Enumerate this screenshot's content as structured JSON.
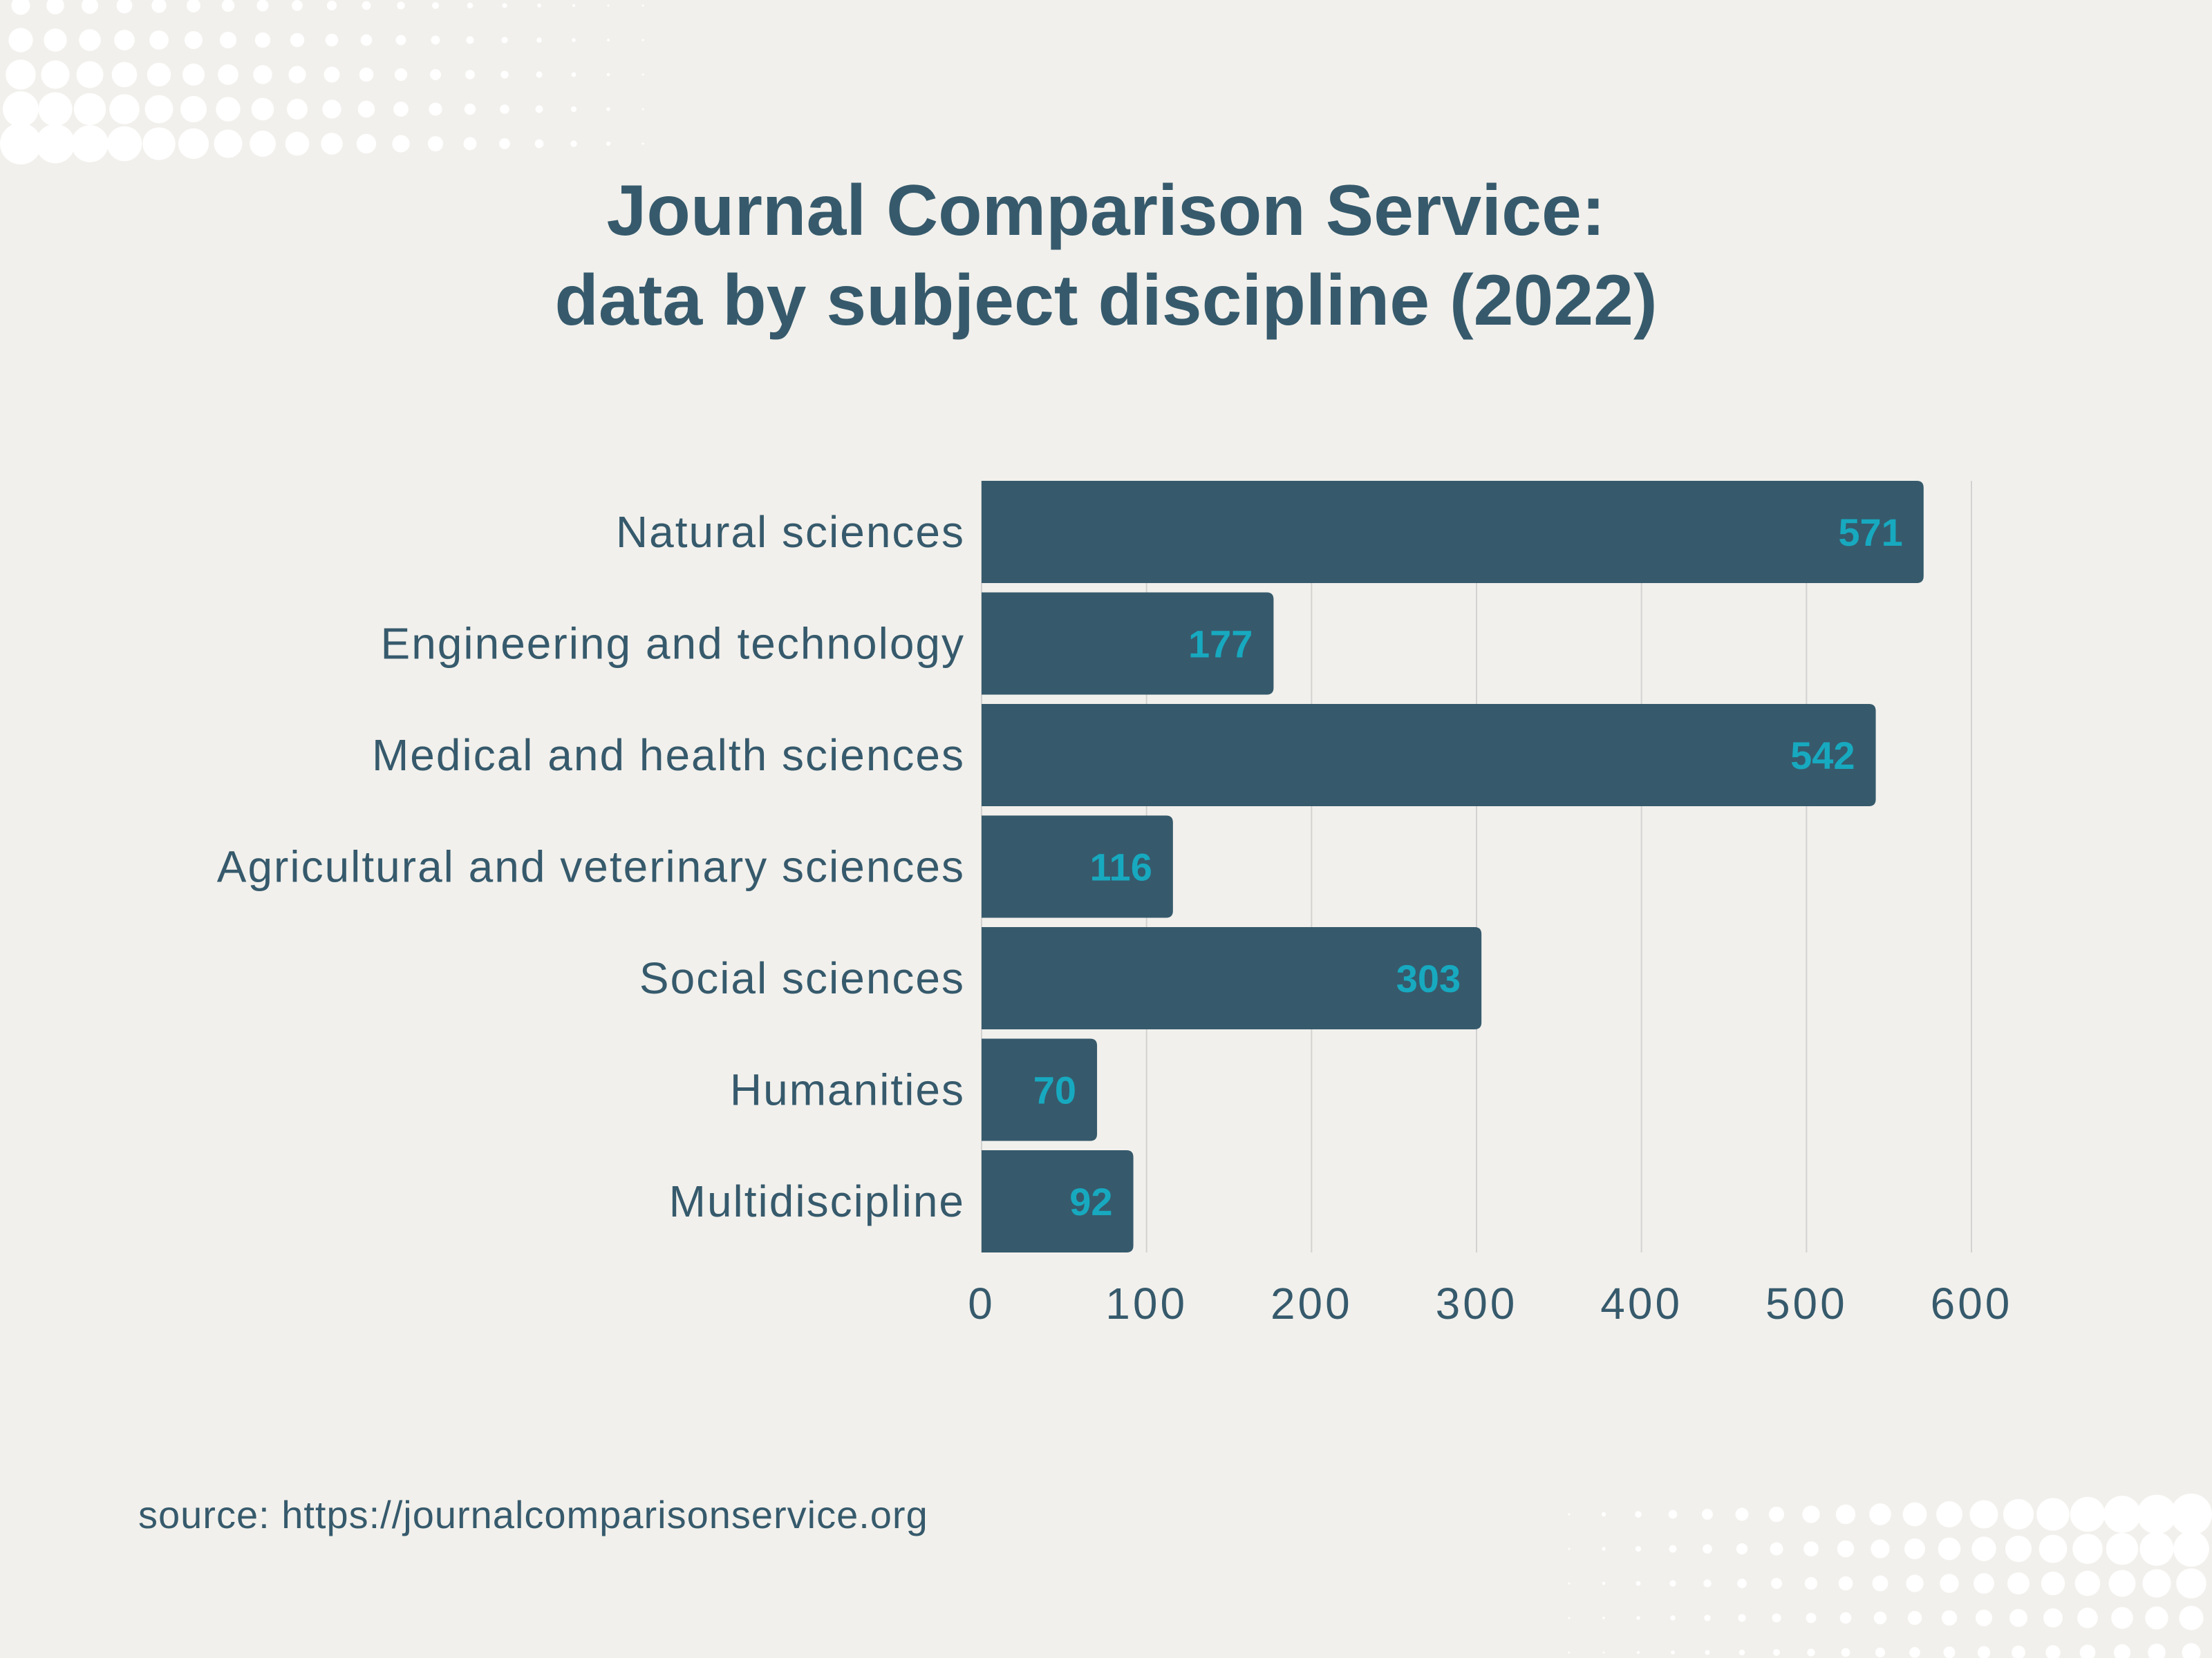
{
  "title_line1": "Journal Comparison Service:",
  "title_line2": "data by subject discipline (2022)",
  "source": "source: https://journalcomparisonservice.org",
  "colors": {
    "background": "#f2f0ec",
    "bar": "#365a6c",
    "value_label": "#17a9bf",
    "text": "#365a6c",
    "grid": "#d2d2d2",
    "dots": "#ffffff"
  },
  "chart_data": {
    "type": "bar",
    "orientation": "horizontal",
    "categories": [
      "Natural sciences",
      "Engineering and technology",
      "Medical and health sciences",
      "Agricultural and veterinary sciences",
      "Social sciences",
      "Humanities",
      "Multidiscipline"
    ],
    "values": [
      571,
      177,
      542,
      116,
      303,
      70,
      92
    ],
    "xlim": [
      0,
      600
    ],
    "xticks": [
      0,
      100,
      200,
      300,
      400,
      500,
      600
    ],
    "grid": true,
    "data_labels": true
  }
}
